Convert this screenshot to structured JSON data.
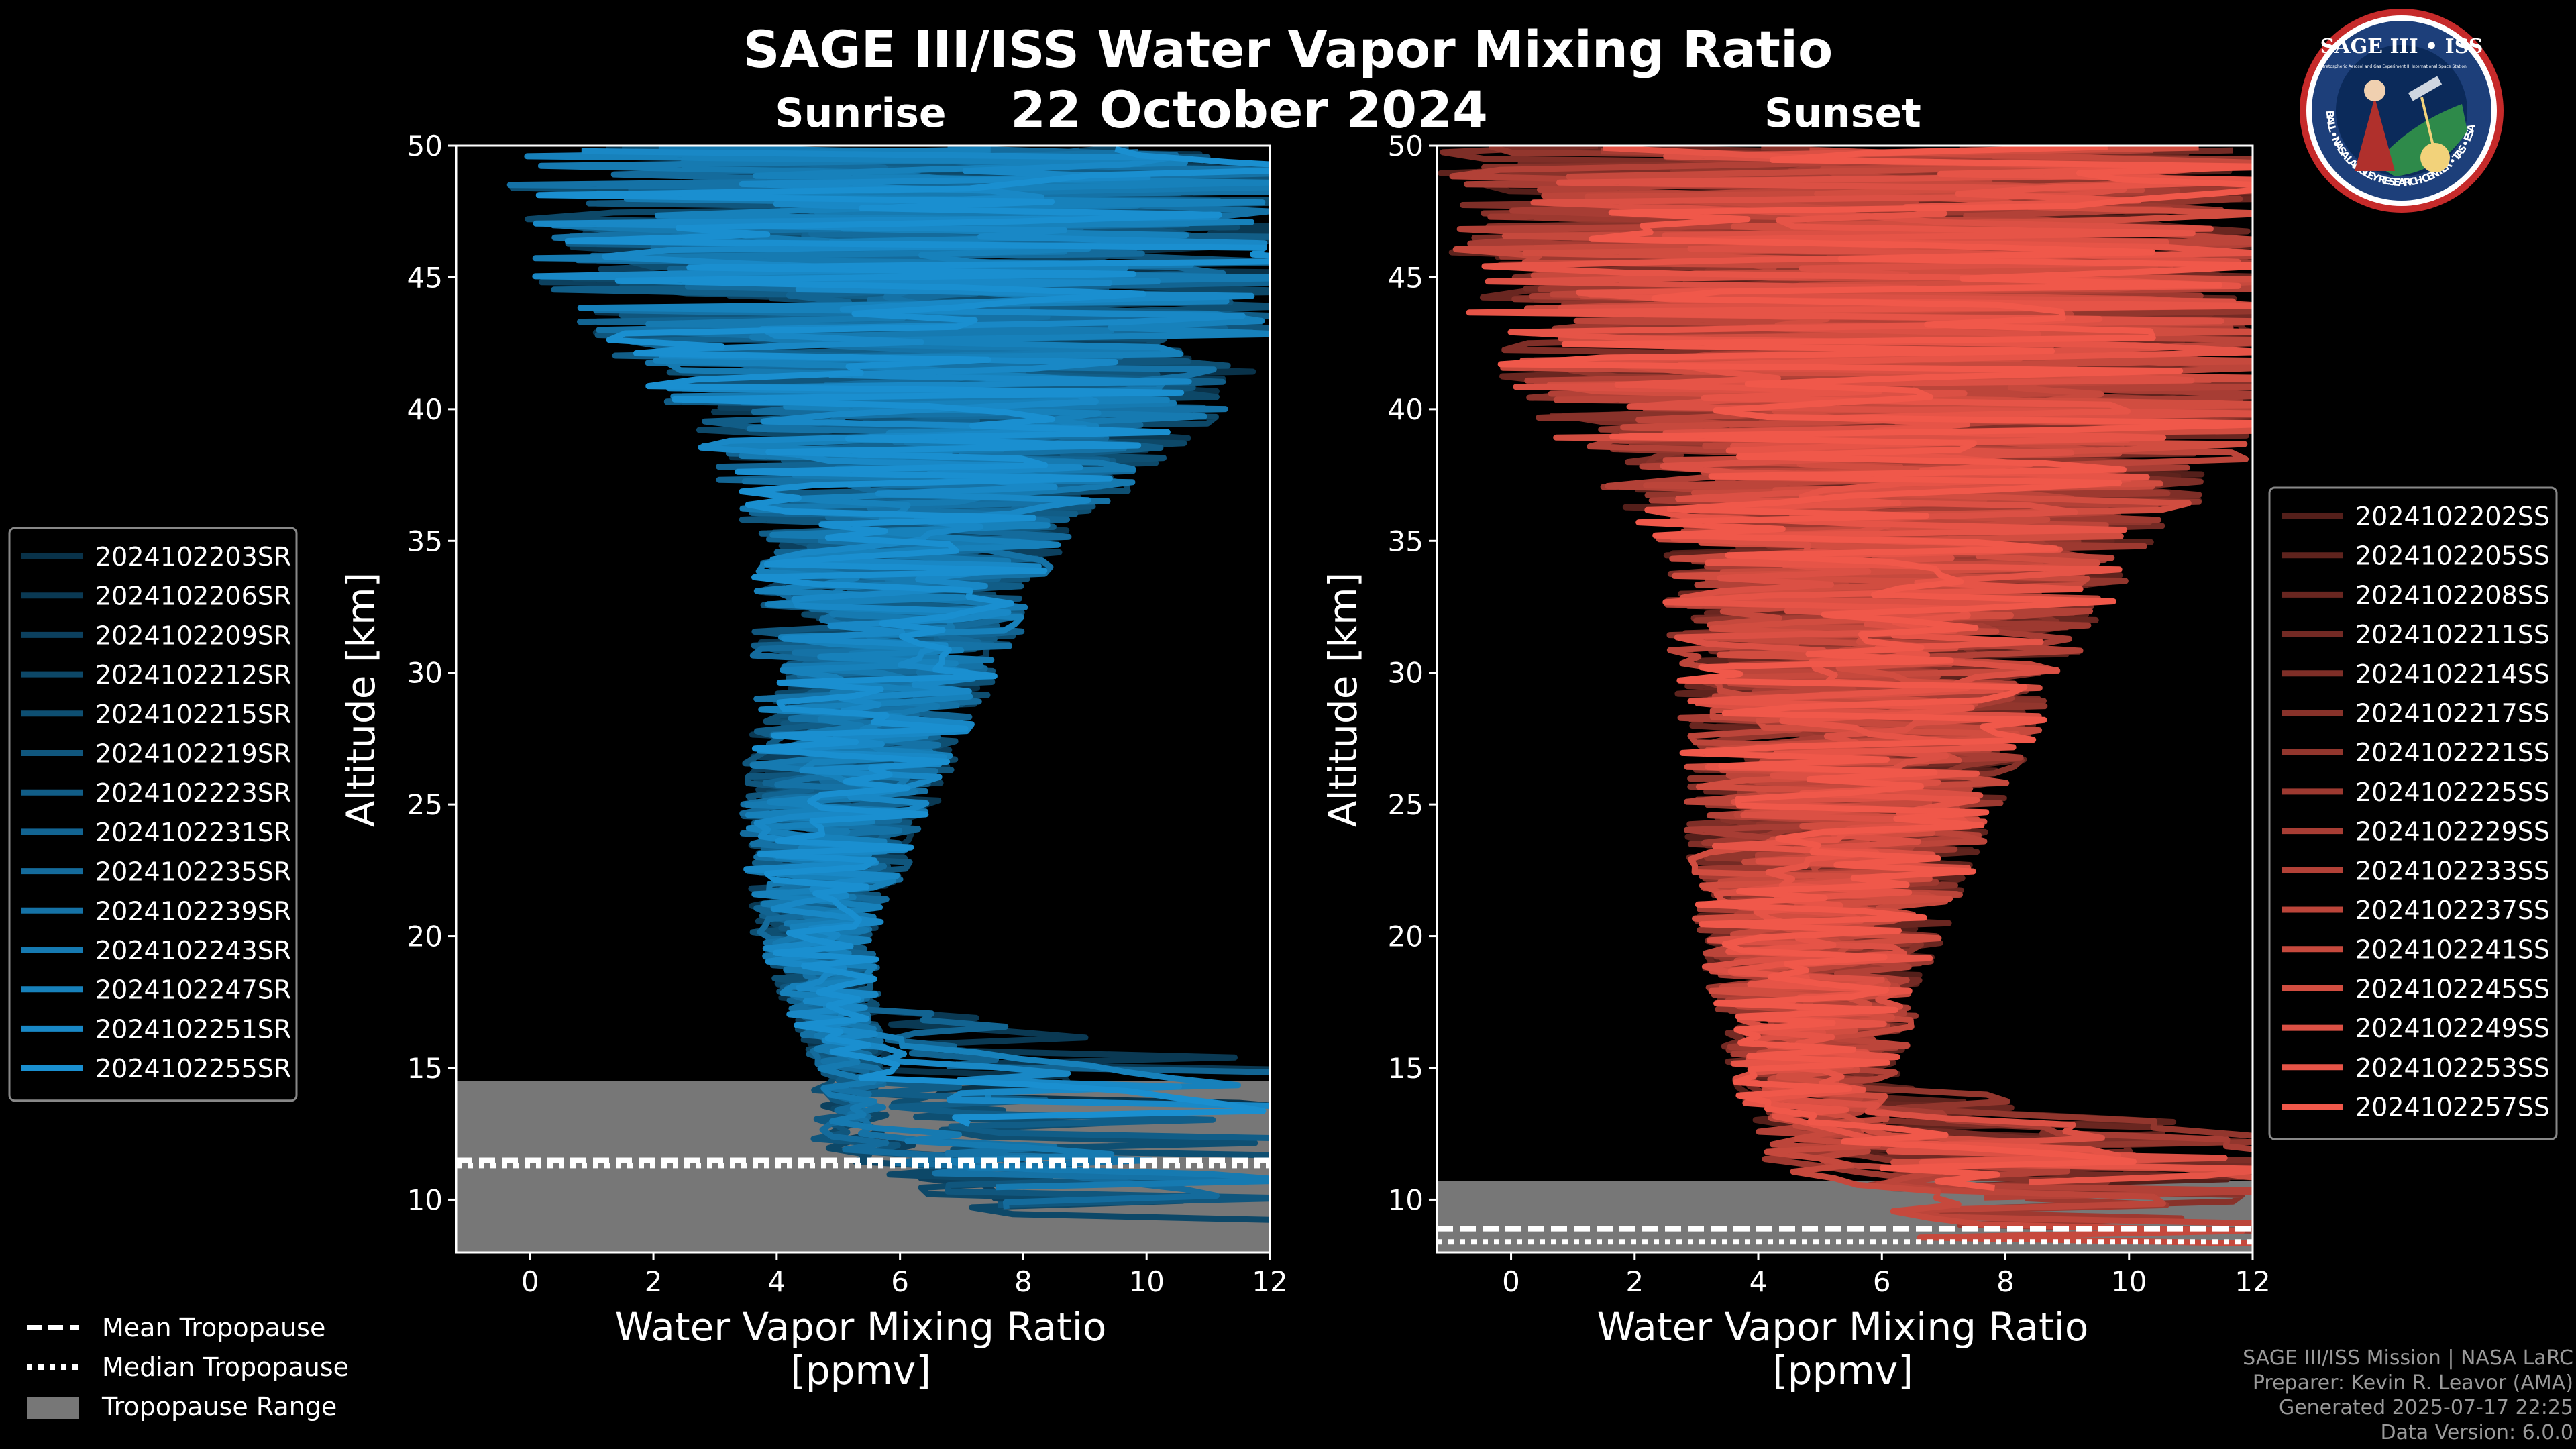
{
  "title": "SAGE III/ISS Water Vapor Mixing Ratio",
  "date": "22 October 2024",
  "logo": {
    "top_text": "SAGE III • ISS",
    "sub_left": "Stratospheric Aerosol and Gas Experiment III",
    "sub_right": "International Space Station",
    "ring_text": "BALL • NASA LANGLEY RESEARCH CENTER • TAS • ESA"
  },
  "colors": {
    "sunrise": "#1a8fd0",
    "sunset": "#f0584a",
    "tropopause_range": "#777777",
    "background": "#000000"
  },
  "chart_data": [
    {
      "type": "line",
      "panel": "sunrise",
      "title": "Sunrise",
      "xlabel": "Water Vapor Mixing Ratio\n[ppmv]",
      "ylabel": "Altitude [km]",
      "xlim": [
        -1.2,
        12
      ],
      "ylim": [
        8,
        50
      ],
      "xticks": [
        0,
        2,
        4,
        6,
        8,
        10,
        12
      ],
      "yticks": [
        10,
        15,
        20,
        25,
        30,
        35,
        40,
        45,
        50
      ],
      "legend_position": "left",
      "series": [
        "2024102203SR",
        "2024102206SR",
        "2024102209SR",
        "2024102212SR",
        "2024102215SR",
        "2024102219SR",
        "2024102223SR",
        "2024102231SR",
        "2024102235SR",
        "2024102239SR",
        "2024102243SR",
        "2024102247SR",
        "2024102251SR",
        "2024102255SR"
      ],
      "tropopause": {
        "mean_km": 11.5,
        "median_km": 11.3,
        "range_km": [
          8,
          14.5
        ]
      },
      "profile_shape": {
        "center": [
          [
            15,
            5.2
          ],
          [
            20,
            4.6
          ],
          [
            25,
            5.0
          ],
          [
            30,
            5.6
          ],
          [
            35,
            6.2
          ],
          [
            40,
            6.8
          ],
          [
            45,
            6.5
          ],
          [
            50,
            6.5
          ]
        ],
        "spread": [
          [
            15,
            0.6
          ],
          [
            20,
            1.0
          ],
          [
            25,
            1.6
          ],
          [
            30,
            2.0
          ],
          [
            35,
            2.6
          ],
          [
            40,
            4.5
          ],
          [
            45,
            6.5
          ],
          [
            50,
            7
          ]
        ]
      }
    },
    {
      "type": "line",
      "panel": "sunset",
      "title": "Sunset",
      "xlabel": "Water Vapor Mixing Ratio\n[ppmv]",
      "ylabel": "Altitude [km]",
      "xlim": [
        -1.2,
        12
      ],
      "ylim": [
        8,
        50
      ],
      "xticks": [
        0,
        2,
        4,
        6,
        8,
        10,
        12
      ],
      "yticks": [
        10,
        15,
        20,
        25,
        30,
        35,
        40,
        45,
        50
      ],
      "legend_position": "right",
      "series": [
        "2024102202SS",
        "2024102205SS",
        "2024102208SS",
        "2024102211SS",
        "2024102214SS",
        "2024102217SS",
        "2024102221SS",
        "2024102225SS",
        "2024102229SS",
        "2024102233SS",
        "2024102237SS",
        "2024102241SS",
        "2024102245SS",
        "2024102249SS",
        "2024102253SS",
        "2024102257SS"
      ],
      "tropopause": {
        "mean_km": 8.9,
        "median_km": 8.4,
        "range_km": [
          8,
          10.7
        ]
      },
      "profile_shape": {
        "center": [
          [
            12,
            5.0
          ],
          [
            15,
            4.9
          ],
          [
            20,
            5.0
          ],
          [
            25,
            5.4
          ],
          [
            30,
            5.8
          ],
          [
            35,
            6.4
          ],
          [
            40,
            6.5
          ],
          [
            45,
            6.0
          ],
          [
            50,
            6.0
          ]
        ],
        "spread": [
          [
            12,
            1.0
          ],
          [
            15,
            1.4
          ],
          [
            20,
            2.0
          ],
          [
            25,
            2.6
          ],
          [
            30,
            3.2
          ],
          [
            35,
            4.0
          ],
          [
            40,
            6.5
          ],
          [
            45,
            7.0
          ],
          [
            50,
            7.2
          ]
        ]
      }
    }
  ],
  "tropopause_legend": {
    "mean": "Mean Tropopause",
    "median": "Median Tropopause",
    "range": "Tropopause Range"
  },
  "footer": {
    "mission": "SAGE III/ISS Mission | NASA LaRC",
    "preparer": "Preparer: Kevin R. Leavor (AMA)",
    "generated": "Generated 2025-07-17 22:25",
    "version": "Data Version: 6.0.0"
  }
}
